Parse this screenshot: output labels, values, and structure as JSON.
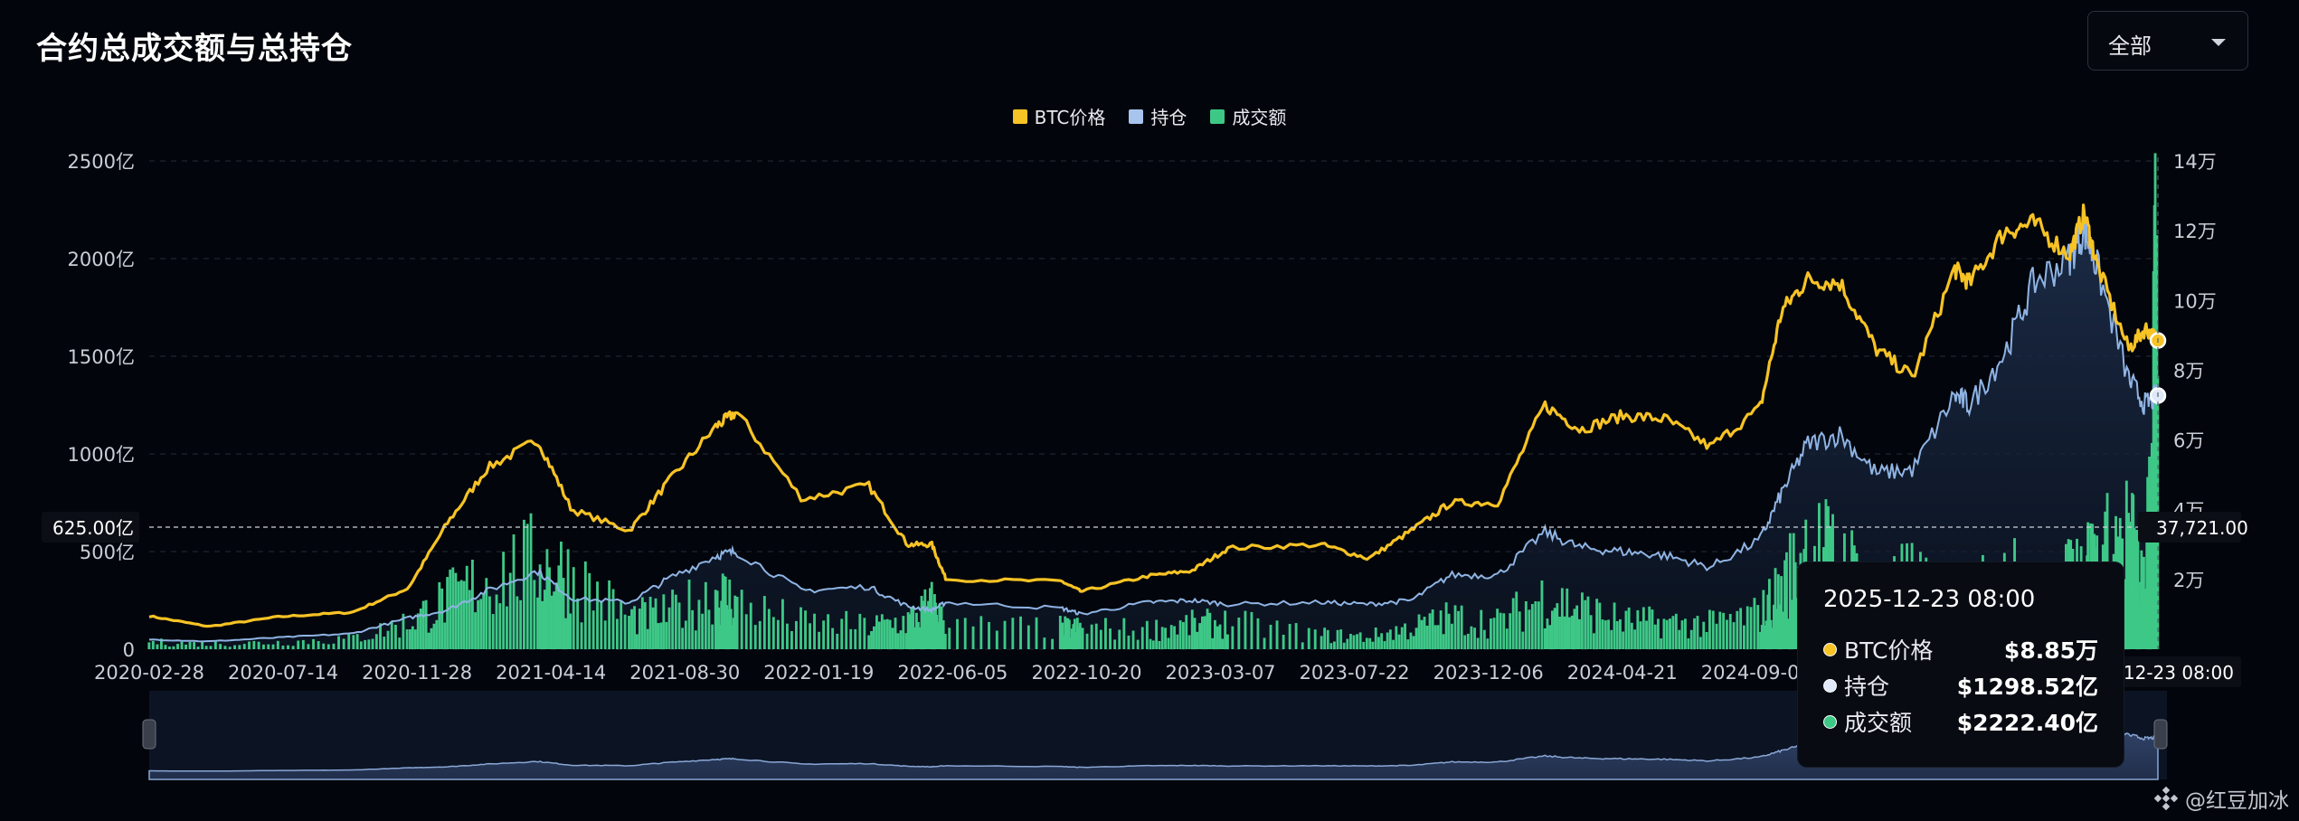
{
  "header": {
    "title": "合约总成交额与总持仓"
  },
  "range_select": {
    "value": "全部"
  },
  "watermark": {
    "label": "@红豆加冰"
  },
  "colors": {
    "btc": "#f7c325",
    "oi": "#8fb4e4",
    "volume": "#3ec887",
    "background": "#02050b"
  },
  "legend": [
    {
      "label": "BTC价格",
      "color": "#f7c325"
    },
    {
      "label": "持仓",
      "color": "#a8c4ec"
    },
    {
      "label": "成交额",
      "color": "#3ec887"
    }
  ],
  "tooltip": {
    "time": "2025-12-23 08:00",
    "rows": [
      {
        "label": "BTC价格",
        "value": "$8.85万",
        "color": "#f7c325"
      },
      {
        "label": "持仓",
        "value": "$1298.52亿",
        "color": "#dfe9f7"
      },
      {
        "label": "成交额",
        "value": "$2222.40亿",
        "color": "#3ec887"
      }
    ]
  },
  "crosshair": {
    "left_label": "625.00亿",
    "right_label": "37,721.00",
    "x_label": "2025-12-23 08:00"
  },
  "chart_data": {
    "type": "line",
    "left_axis": {
      "ylim": [
        0,
        2500
      ],
      "ticks": [
        0,
        500,
        1000,
        1500,
        2000,
        2500
      ],
      "tick_labels": [
        "0",
        "500亿",
        "1000亿",
        "1500亿",
        "2000亿",
        "2500亿"
      ]
    },
    "right_axis": {
      "ylim": [
        0,
        140000
      ],
      "ticks": [
        20000,
        40000,
        60000,
        80000,
        100000,
        120000,
        140000
      ],
      "tick_labels": [
        "2万",
        "4万",
        "6万",
        "8万",
        "10万",
        "12万",
        "14万"
      ]
    },
    "x_tick_labels": [
      "2020-02-28",
      "2020-07-14",
      "2020-11-28",
      "2021-04-14",
      "2021-08-30",
      "2022-01-19",
      "2022-06-05",
      "2022-10-20",
      "2023-03-07",
      "2023-07-22",
      "2023-12-06",
      "2024-04-21",
      "2024-09-05",
      "2025-01-21",
      "2025-06-07",
      "2025-12-23"
    ],
    "x": [
      "2020-02-28",
      "2020-05-01",
      "2020-07-14",
      "2020-09-30",
      "2020-11-28",
      "2021-01-08",
      "2021-02-20",
      "2021-04-14",
      "2021-05-20",
      "2021-07-20",
      "2021-08-30",
      "2021-10-20",
      "2021-11-10",
      "2022-01-19",
      "2022-03-30",
      "2022-05-10",
      "2022-06-05",
      "2022-06-20",
      "2022-10-20",
      "2022-11-10",
      "2023-01-20",
      "2023-03-07",
      "2023-04-15",
      "2023-07-22",
      "2023-09-10",
      "2023-10-25",
      "2023-12-06",
      "2024-01-25",
      "2024-03-14",
      "2024-04-21",
      "2024-06-05",
      "2024-07-20",
      "2024-09-05",
      "2024-10-28",
      "2024-11-20",
      "2024-12-17",
      "2025-01-21",
      "2025-02-28",
      "2025-04-08",
      "2025-05-22",
      "2025-06-07",
      "2025-07-14",
      "2025-08-14",
      "2025-09-20",
      "2025-10-06",
      "2025-10-20",
      "2025-11-22",
      "2025-12-10",
      "2025-12-23"
    ],
    "series": [
      {
        "name": "BTC价格",
        "axis": "right",
        "values": [
          9500,
          6500,
          9300,
          10600,
          17500,
          36000,
          52000,
          60000,
          40000,
          34000,
          48000,
          64000,
          68000,
          43000,
          47000,
          30000,
          30000,
          20000,
          19500,
          16500,
          21000,
          22500,
          29000,
          30000,
          26000,
          34000,
          42000,
          42000,
          70000,
          63000,
          67000,
          66000,
          58000,
          69000,
          97000,
          106000,
          105000,
          86000,
          78000,
          109000,
          105000,
          120000,
          122000,
          113000,
          125000,
          110000,
          86000,
          92000,
          88500
        ]
      },
      {
        "name": "持仓",
        "axis": "left",
        "values": [
          50,
          40,
          60,
          80,
          160,
          200,
          300,
          400,
          260,
          240,
          360,
          480,
          500,
          300,
          320,
          220,
          200,
          240,
          210,
          180,
          240,
          250,
          230,
          240,
          230,
          250,
          380,
          380,
          600,
          520,
          500,
          480,
          420,
          560,
          800,
          1050,
          1100,
          900,
          920,
          1300,
          1250,
          1520,
          1880,
          2000,
          2150,
          1950,
          1380,
          1250,
          1298.52
        ]
      }
    ],
    "volume": {
      "name": "成交额",
      "axis": "left",
      "values": [
        40,
        30,
        40,
        60,
        150,
        280,
        400,
        500,
        420,
        180,
        200,
        330,
        260,
        150,
        130,
        160,
        250,
        130,
        120,
        120,
        110,
        140,
        150,
        80,
        70,
        120,
        180,
        150,
        300,
        230,
        160,
        150,
        140,
        200,
        350,
        600,
        520,
        330,
        400,
        260,
        240,
        500,
        250,
        400,
        500,
        500,
        700,
        300,
        2222.4
      ]
    }
  }
}
